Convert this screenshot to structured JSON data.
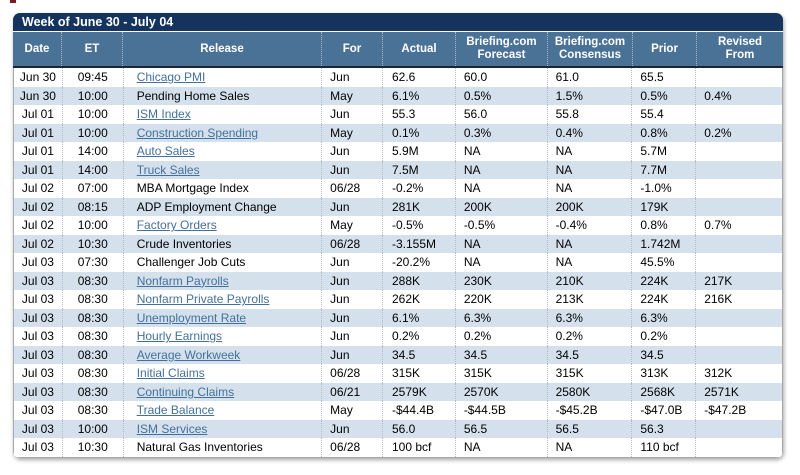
{
  "colors": {
    "title_bar_bg": "#14345e",
    "header_bg": "#4a7296",
    "alt_row_bg": "#d4e1ec",
    "link_color": "#44709b",
    "body_text": "#000000"
  },
  "calendar": {
    "title": "Week of June 30 - July 04",
    "columns": [
      {
        "key": "date",
        "label": "Date"
      },
      {
        "key": "et",
        "label": "ET"
      },
      {
        "key": "release",
        "label": "Release"
      },
      {
        "key": "for",
        "label": "For"
      },
      {
        "key": "actual",
        "label": "Actual"
      },
      {
        "key": "forecast",
        "label": "Briefing.com\nForecast"
      },
      {
        "key": "consensus",
        "label": "Briefing.com\nConsensus"
      },
      {
        "key": "prior",
        "label": "Prior"
      },
      {
        "key": "revised",
        "label": "Revised\nFrom"
      }
    ],
    "rows": [
      {
        "date": "Jun 30",
        "et": "09:45",
        "release": "Chicago PMI",
        "link": true,
        "for": "Jun",
        "actual": "62.6",
        "forecast": "60.0",
        "consensus": "61.0",
        "prior": "65.5",
        "revised": ""
      },
      {
        "date": "Jun 30",
        "et": "10:00",
        "release": "Pending Home Sales",
        "link": false,
        "for": "May",
        "actual": "6.1%",
        "forecast": "0.5%",
        "consensus": "1.5%",
        "prior": "0.5%",
        "revised": "0.4%"
      },
      {
        "date": "Jul 01",
        "et": "10:00",
        "release": "ISM Index",
        "link": true,
        "for": "Jun",
        "actual": "55.3",
        "forecast": "56.0",
        "consensus": "55.8",
        "prior": "55.4",
        "revised": ""
      },
      {
        "date": "Jul 01",
        "et": "10:00",
        "release": "Construction Spending",
        "link": true,
        "for": "May",
        "actual": "0.1%",
        "forecast": "0.3%",
        "consensus": "0.4%",
        "prior": "0.8%",
        "revised": "0.2%"
      },
      {
        "date": "Jul 01",
        "et": "14:00",
        "release": "Auto Sales",
        "link": true,
        "for": "Jun",
        "actual": "5.9M",
        "forecast": "NA",
        "consensus": "NA",
        "prior": "5.7M",
        "revised": ""
      },
      {
        "date": "Jul 01",
        "et": "14:00",
        "release": "Truck Sales",
        "link": true,
        "for": "Jun",
        "actual": "7.5M",
        "forecast": "NA",
        "consensus": "NA",
        "prior": "7.7M",
        "revised": ""
      },
      {
        "date": "Jul 02",
        "et": "07:00",
        "release": "MBA Mortgage Index",
        "link": false,
        "for": "06/28",
        "actual": "-0.2%",
        "forecast": "NA",
        "consensus": "NA",
        "prior": "-1.0%",
        "revised": ""
      },
      {
        "date": "Jul 02",
        "et": "08:15",
        "release": "ADP Employment Change",
        "link": false,
        "for": "Jun",
        "actual": "281K",
        "forecast": "200K",
        "consensus": "200K",
        "prior": "179K",
        "revised": ""
      },
      {
        "date": "Jul 02",
        "et": "10:00",
        "release": "Factory Orders",
        "link": true,
        "for": "May",
        "actual": "-0.5%",
        "forecast": "-0.5%",
        "consensus": "-0.4%",
        "prior": "0.8%",
        "revised": "0.7%"
      },
      {
        "date": "Jul 02",
        "et": "10:30",
        "release": "Crude Inventories",
        "link": false,
        "for": "06/28",
        "actual": "-3.155M",
        "forecast": "NA",
        "consensus": "NA",
        "prior": "1.742M",
        "revised": ""
      },
      {
        "date": "Jul 03",
        "et": "07:30",
        "release": "Challenger Job Cuts",
        "link": false,
        "for": "Jun",
        "actual": "-20.2%",
        "forecast": "NA",
        "consensus": "NA",
        "prior": "45.5%",
        "revised": ""
      },
      {
        "date": "Jul 03",
        "et": "08:30",
        "release": "Nonfarm Payrolls",
        "link": true,
        "for": "Jun",
        "actual": "288K",
        "forecast": "230K",
        "consensus": "210K",
        "prior": "224K",
        "revised": "217K"
      },
      {
        "date": "Jul 03",
        "et": "08:30",
        "release": "Nonfarm Private Payrolls",
        "link": true,
        "for": "Jun",
        "actual": "262K",
        "forecast": "220K",
        "consensus": "213K",
        "prior": "224K",
        "revised": "216K"
      },
      {
        "date": "Jul 03",
        "et": "08:30",
        "release": "Unemployment Rate",
        "link": true,
        "for": "Jun",
        "actual": "6.1%",
        "forecast": "6.3%",
        "consensus": "6.3%",
        "prior": "6.3%",
        "revised": ""
      },
      {
        "date": "Jul 03",
        "et": "08:30",
        "release": "Hourly Earnings",
        "link": true,
        "for": "Jun",
        "actual": "0.2%",
        "forecast": "0.2%",
        "consensus": "0.2%",
        "prior": "0.2%",
        "revised": ""
      },
      {
        "date": "Jul 03",
        "et": "08:30",
        "release": "Average Workweek",
        "link": true,
        "for": "Jun",
        "actual": "34.5",
        "forecast": "34.5",
        "consensus": "34.5",
        "prior": "34.5",
        "revised": ""
      },
      {
        "date": "Jul 03",
        "et": "08:30",
        "release": "Initial Claims",
        "link": true,
        "for": "06/28",
        "actual": "315K",
        "forecast": "315K",
        "consensus": "315K",
        "prior": "313K",
        "revised": "312K"
      },
      {
        "date": "Jul 03",
        "et": "08:30",
        "release": "Continuing Claims",
        "link": true,
        "for": "06/21",
        "actual": "2579K",
        "forecast": "2570K",
        "consensus": "2580K",
        "prior": "2568K",
        "revised": "2571K"
      },
      {
        "date": "Jul 03",
        "et": "08:30",
        "release": "Trade Balance",
        "link": true,
        "for": "May",
        "actual": "-$44.4B",
        "forecast": "-$44.5B",
        "consensus": "-$45.2B",
        "prior": "-$47.0B",
        "revised": "-$47.2B"
      },
      {
        "date": "Jul 03",
        "et": "10:00",
        "release": "ISM Services",
        "link": true,
        "for": "Jun",
        "actual": "56.0",
        "forecast": "56.5",
        "consensus": "56.5",
        "prior": "56.3",
        "revised": ""
      },
      {
        "date": "Jul 03",
        "et": "10:30",
        "release": "Natural Gas Inventories",
        "link": false,
        "for": "06/28",
        "actual": "100 bcf",
        "forecast": "NA",
        "consensus": "NA",
        "prior": "110 bcf",
        "revised": ""
      }
    ]
  }
}
